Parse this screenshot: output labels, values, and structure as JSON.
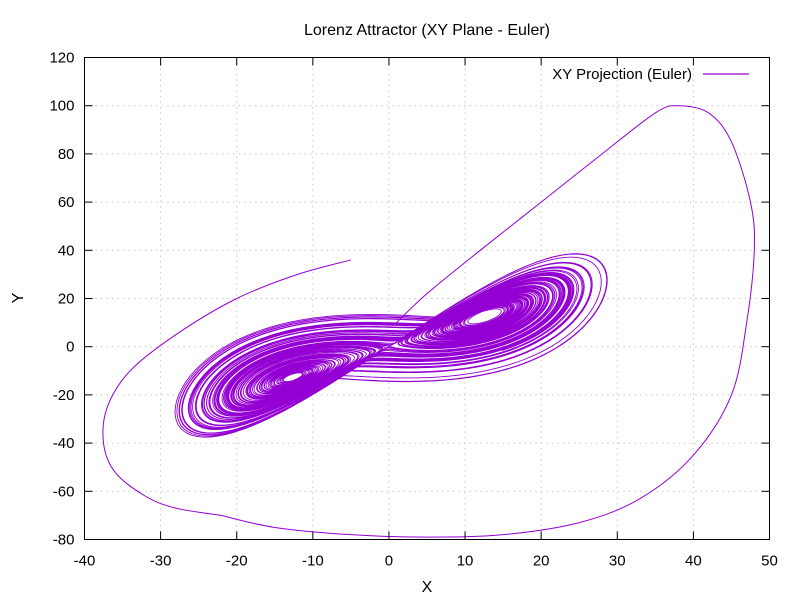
{
  "chart_data": {
    "type": "line",
    "title": "Lorenz Attractor (XY Plane - Euler)",
    "xlabel": "X",
    "ylabel": "Y",
    "xlim": [
      -40,
      50
    ],
    "ylim": [
      -80,
      120
    ],
    "xticks": [
      -40,
      -30,
      -20,
      -10,
      0,
      10,
      20,
      30,
      40,
      50
    ],
    "yticks": [
      -80,
      -60,
      -40,
      -20,
      0,
      20,
      40,
      60,
      80,
      100,
      120
    ],
    "grid": true,
    "legend_position": "top-right",
    "series": [
      {
        "name": "XY Projection (Euler)",
        "color": "#9400d3",
        "generator": {
          "method": "euler",
          "sigma": 10,
          "rho": 28,
          "beta": 2.6667,
          "scale": 1.5,
          "dt": 0.005,
          "steps": 30000,
          "initial": [
            1,
            1,
            1
          ]
        },
        "excursion_points": [
          [
            1,
            10
          ],
          [
            5,
            22
          ],
          [
            12,
            40
          ],
          [
            20,
            60
          ],
          [
            28,
            80
          ],
          [
            35,
            97
          ],
          [
            38,
            100
          ],
          [
            42,
            97
          ],
          [
            45,
            85
          ],
          [
            47.5,
            60
          ],
          [
            48,
            40
          ],
          [
            47,
            10
          ],
          [
            45,
            -20
          ],
          [
            40,
            -45
          ],
          [
            33,
            -63
          ],
          [
            25,
            -73
          ],
          [
            15,
            -78
          ],
          [
            5,
            -79
          ],
          [
            -5,
            -78
          ],
          [
            -15,
            -75
          ],
          [
            -22,
            -70
          ]
        ],
        "orbit_points": [
          [
            -22,
            -70
          ],
          [
            -28,
            -67
          ],
          [
            -32,
            -62
          ],
          [
            -36,
            -52
          ],
          [
            -37.5,
            -40
          ],
          [
            -37,
            -25
          ],
          [
            -34,
            -10
          ],
          [
            -28,
            5
          ],
          [
            -20,
            20
          ],
          [
            -12,
            30
          ],
          [
            -5,
            36
          ]
        ]
      }
    ]
  }
}
